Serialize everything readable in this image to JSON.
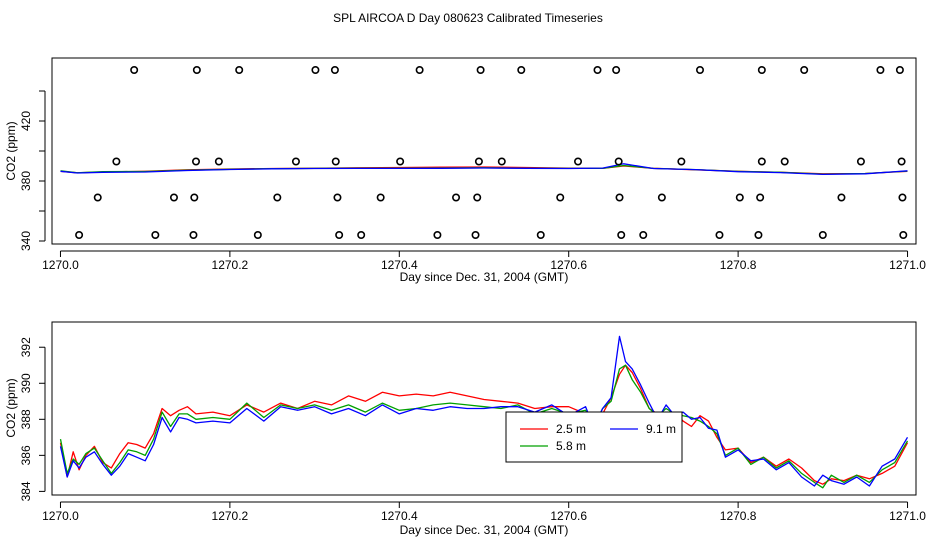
{
  "title": "SPL AIRCOA D  Day 080623  Calibrated Timeseries",
  "chart_data": [
    {
      "type": "scatter+line",
      "id": "top",
      "xlabel": "Day since Dec. 31, 2004 (GMT)",
      "ylabel": "CO2 (ppm)",
      "xlim": [
        1269.99,
        1271.01
      ],
      "ylim": [
        338,
        462
      ],
      "xticks": [
        1270.0,
        1270.2,
        1270.4,
        1270.6,
        1270.8,
        1271.0
      ],
      "xtick_labels": [
        "1270.0",
        "1270.2",
        "1270.4",
        "1270.6",
        "1270.8",
        "1271.0"
      ],
      "yticks": [
        340,
        380,
        420
      ],
      "ytick_labels": [
        "340",
        "380",
        "420"
      ],
      "yticks_minor": [
        360,
        400,
        440
      ],
      "calibration_points": [
        {
          "x": 1270.087,
          "y": 454
        },
        {
          "x": 1270.161,
          "y": 454
        },
        {
          "x": 1270.211,
          "y": 454
        },
        {
          "x": 1270.301,
          "y": 454
        },
        {
          "x": 1270.324,
          "y": 454
        },
        {
          "x": 1270.424,
          "y": 454
        },
        {
          "x": 1270.496,
          "y": 454
        },
        {
          "x": 1270.544,
          "y": 454
        },
        {
          "x": 1270.634,
          "y": 454
        },
        {
          "x": 1270.656,
          "y": 454
        },
        {
          "x": 1270.755,
          "y": 454
        },
        {
          "x": 1270.828,
          "y": 454
        },
        {
          "x": 1270.878,
          "y": 454
        },
        {
          "x": 1270.968,
          "y": 454
        },
        {
          "x": 1270.991,
          "y": 454
        },
        {
          "x": 1270.066,
          "y": 393
        },
        {
          "x": 1270.16,
          "y": 393
        },
        {
          "x": 1270.187,
          "y": 393
        },
        {
          "x": 1270.278,
          "y": 393
        },
        {
          "x": 1270.325,
          "y": 393
        },
        {
          "x": 1270.401,
          "y": 393
        },
        {
          "x": 1270.494,
          "y": 393
        },
        {
          "x": 1270.521,
          "y": 393
        },
        {
          "x": 1270.611,
          "y": 393
        },
        {
          "x": 1270.659,
          "y": 393
        },
        {
          "x": 1270.733,
          "y": 393
        },
        {
          "x": 1270.828,
          "y": 393
        },
        {
          "x": 1270.855,
          "y": 393
        },
        {
          "x": 1270.945,
          "y": 393
        },
        {
          "x": 1270.993,
          "y": 393
        },
        {
          "x": 1270.044,
          "y": 369
        },
        {
          "x": 1270.134,
          "y": 369
        },
        {
          "x": 1270.158,
          "y": 369
        },
        {
          "x": 1270.256,
          "y": 369
        },
        {
          "x": 1270.327,
          "y": 369
        },
        {
          "x": 1270.378,
          "y": 369
        },
        {
          "x": 1270.467,
          "y": 369
        },
        {
          "x": 1270.492,
          "y": 369
        },
        {
          "x": 1270.59,
          "y": 369
        },
        {
          "x": 1270.66,
          "y": 369
        },
        {
          "x": 1270.71,
          "y": 369
        },
        {
          "x": 1270.802,
          "y": 369
        },
        {
          "x": 1270.826,
          "y": 369
        },
        {
          "x": 1270.922,
          "y": 369
        },
        {
          "x": 1270.994,
          "y": 369
        },
        {
          "x": 1270.022,
          "y": 344
        },
        {
          "x": 1270.112,
          "y": 344
        },
        {
          "x": 1270.157,
          "y": 344
        },
        {
          "x": 1270.233,
          "y": 344
        },
        {
          "x": 1270.329,
          "y": 344
        },
        {
          "x": 1270.355,
          "y": 344
        },
        {
          "x": 1270.445,
          "y": 344
        },
        {
          "x": 1270.49,
          "y": 344
        },
        {
          "x": 1270.567,
          "y": 344
        },
        {
          "x": 1270.662,
          "y": 344
        },
        {
          "x": 1270.688,
          "y": 344
        },
        {
          "x": 1270.778,
          "y": 344
        },
        {
          "x": 1270.824,
          "y": 344
        },
        {
          "x": 1270.9,
          "y": 344
        },
        {
          "x": 1270.995,
          "y": 344
        }
      ],
      "series_x": [
        1270.0,
        1270.02,
        1270.05,
        1270.1,
        1270.15,
        1270.2,
        1270.25,
        1270.3,
        1270.35,
        1270.4,
        1270.45,
        1270.5,
        1270.55,
        1270.6,
        1270.64,
        1270.665,
        1270.7,
        1270.75,
        1270.8,
        1270.85,
        1270.9,
        1270.95,
        1271.0
      ],
      "series": [
        {
          "name": "2.5 m",
          "color": "#ff0000",
          "values": [
            386.5,
            385.5,
            386.0,
            386.5,
            387.5,
            388.0,
            388.3,
            388.5,
            388.8,
            389.0,
            389.2,
            389.3,
            389.0,
            388.6,
            388.5,
            390.0,
            388.5,
            387.5,
            386.5,
            385.8,
            384.8,
            385.0,
            386.5
          ]
        },
        {
          "name": "5.8 m",
          "color": "#00a000",
          "values": [
            386.8,
            385.5,
            386.2,
            386.3,
            387.2,
            387.8,
            388.2,
            388.4,
            388.6,
            388.6,
            388.7,
            388.8,
            388.6,
            388.4,
            388.5,
            390.3,
            388.4,
            387.6,
            386.4,
            385.8,
            384.6,
            385.0,
            386.6
          ]
        },
        {
          "name": "9.1 m",
          "color": "#0000ff",
          "values": [
            386.5,
            385.3,
            385.8,
            386.0,
            387.0,
            387.7,
            388.1,
            388.3,
            388.4,
            388.4,
            388.5,
            388.7,
            388.5,
            388.3,
            388.6,
            391.5,
            388.3,
            387.6,
            386.2,
            385.6,
            384.4,
            384.8,
            386.8
          ]
        }
      ]
    },
    {
      "type": "line",
      "id": "bottom",
      "xlabel": "Day since Dec. 31, 2004 (GMT)",
      "ylabel": "CO2 (ppm)",
      "xlim": [
        1269.99,
        1271.01
      ],
      "ylim": [
        383.8,
        393.4
      ],
      "xticks": [
        1270.0,
        1270.2,
        1270.4,
        1270.6,
        1270.8,
        1271.0
      ],
      "xtick_labels": [
        "1270.0",
        "1270.2",
        "1270.4",
        "1270.6",
        "1270.8",
        "1271.0"
      ],
      "yticks": [
        384,
        386,
        388,
        390,
        392
      ],
      "ytick_labels": [
        "384",
        "386",
        "388",
        "390",
        "392"
      ],
      "legend": {
        "position": "center-right",
        "entries": [
          "2.5 m",
          "9.1 m",
          "5.8 m"
        ]
      },
      "series_x": [
        1270.0,
        1270.008,
        1270.015,
        1270.022,
        1270.03,
        1270.04,
        1270.05,
        1270.06,
        1270.07,
        1270.08,
        1270.09,
        1270.1,
        1270.11,
        1270.12,
        1270.13,
        1270.14,
        1270.15,
        1270.16,
        1270.18,
        1270.2,
        1270.22,
        1270.24,
        1270.26,
        1270.28,
        1270.3,
        1270.32,
        1270.34,
        1270.36,
        1270.38,
        1270.4,
        1270.42,
        1270.44,
        1270.46,
        1270.48,
        1270.5,
        1270.52,
        1270.54,
        1270.56,
        1270.58,
        1270.6,
        1270.62,
        1270.63,
        1270.64,
        1270.65,
        1270.66,
        1270.667,
        1270.675,
        1270.685,
        1270.695,
        1270.705,
        1270.715,
        1270.725,
        1270.735,
        1270.745,
        1270.755,
        1270.765,
        1270.775,
        1270.785,
        1270.8,
        1270.815,
        1270.83,
        1270.845,
        1270.86,
        1270.875,
        1270.89,
        1270.9,
        1270.91,
        1270.925,
        1270.94,
        1270.955,
        1270.97,
        1270.985,
        1271.0
      ],
      "series": [
        {
          "name": "2.5 m",
          "color": "#ff0000",
          "values": [
            386.7,
            384.8,
            386.2,
            385.2,
            386.0,
            386.5,
            385.6,
            385.3,
            386.1,
            386.7,
            386.6,
            386.4,
            387.2,
            388.6,
            388.2,
            388.5,
            388.7,
            388.3,
            388.4,
            388.2,
            388.8,
            388.4,
            388.9,
            388.6,
            389.0,
            388.8,
            389.3,
            389.0,
            389.5,
            389.3,
            389.4,
            389.3,
            389.5,
            389.3,
            389.1,
            389.0,
            388.9,
            388.6,
            388.7,
            388.7,
            388.3,
            387.8,
            388.3,
            389.2,
            390.5,
            391.0,
            390.6,
            389.7,
            388.6,
            388.3,
            388.2,
            388.4,
            387.9,
            387.6,
            388.2,
            387.9,
            387.0,
            386.3,
            386.4,
            385.6,
            385.9,
            385.4,
            385.8,
            385.3,
            384.6,
            384.4,
            384.7,
            384.6,
            384.9,
            384.7,
            385.0,
            385.4,
            386.7
          ]
        },
        {
          "name": "5.8 m",
          "color": "#00a000",
          "values": [
            386.9,
            385.0,
            385.8,
            385.5,
            386.1,
            386.4,
            385.7,
            385.0,
            385.6,
            386.3,
            386.2,
            386.0,
            386.9,
            388.4,
            387.6,
            388.3,
            388.3,
            388.0,
            388.1,
            388.0,
            388.9,
            388.1,
            388.8,
            388.6,
            388.8,
            388.5,
            388.8,
            388.4,
            388.9,
            388.5,
            388.6,
            388.8,
            388.9,
            388.8,
            388.7,
            388.6,
            388.8,
            388.3,
            388.6,
            388.3,
            388.5,
            387.7,
            388.6,
            389.0,
            390.8,
            391.0,
            390.2,
            389.5,
            388.6,
            388.2,
            388.6,
            388.3,
            388.2,
            388.1,
            387.9,
            387.6,
            387.2,
            386.0,
            386.4,
            385.5,
            385.9,
            385.3,
            385.7,
            385.0,
            384.5,
            384.2,
            384.9,
            384.5,
            384.9,
            384.5,
            385.2,
            385.6,
            386.8
          ]
        },
        {
          "name": "9.1 m",
          "color": "#0000ff",
          "values": [
            386.5,
            384.8,
            385.7,
            385.3,
            385.9,
            386.2,
            385.5,
            384.9,
            385.4,
            386.1,
            385.9,
            385.7,
            386.6,
            388.1,
            387.3,
            388.1,
            388.0,
            387.8,
            387.9,
            387.8,
            388.6,
            387.9,
            388.7,
            388.5,
            388.7,
            388.3,
            388.6,
            388.2,
            388.8,
            388.3,
            388.6,
            388.5,
            388.7,
            388.6,
            388.6,
            388.7,
            388.7,
            388.4,
            388.8,
            388.2,
            388.7,
            387.5,
            388.6,
            389.2,
            392.6,
            391.2,
            390.8,
            389.9,
            388.9,
            388.0,
            388.8,
            388.2,
            388.4,
            388.0,
            388.1,
            387.5,
            387.4,
            385.9,
            386.3,
            385.7,
            385.8,
            385.2,
            385.6,
            384.8,
            384.3,
            384.9,
            384.6,
            384.4,
            384.8,
            384.3,
            385.4,
            385.8,
            387.0
          ]
        }
      ]
    }
  ]
}
